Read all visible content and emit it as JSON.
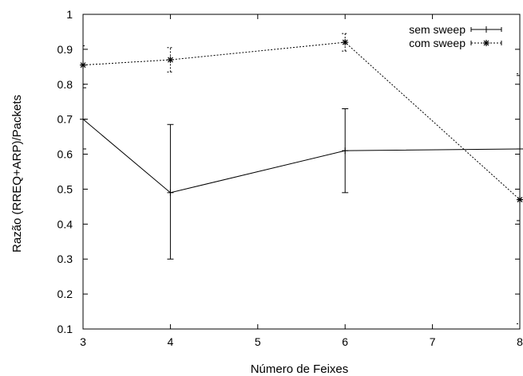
{
  "chart_data": {
    "type": "line",
    "xlabel": "Número de Feixes",
    "ylabel": "Razão (RREQ+ARP)/Packets",
    "xlim": [
      3,
      8
    ],
    "ylim": [
      0.1,
      1
    ],
    "x_ticks": [
      "3",
      "4",
      "5",
      "6",
      "7",
      "8"
    ],
    "y_ticks": [
      "0.1",
      "0.2",
      "0.3",
      "0.4",
      "0.5",
      "0.6",
      "0.7",
      "0.8",
      "0.9",
      "1"
    ],
    "grid": false,
    "legend_position": "top-right",
    "series": [
      {
        "name": "sem sweep",
        "line_style": "solid",
        "marker": "plus",
        "x": [
          3,
          4,
          6,
          8
        ],
        "y": [
          0.7,
          0.49,
          0.61,
          0.615
        ],
        "err_low": [
          0.615,
          0.3,
          0.49,
          0.41
        ],
        "err_high": [
          0.79,
          0.685,
          0.73,
          0.825
        ]
      },
      {
        "name": "com sweep",
        "line_style": "dotted",
        "marker": "star",
        "x": [
          3,
          4,
          6,
          8
        ],
        "y": [
          0.855,
          0.87,
          0.92,
          0.47
        ],
        "err_low": [
          0.8,
          0.835,
          0.895,
          0.115
        ],
        "err_high": [
          0.91,
          0.905,
          0.945,
          0.83
        ]
      }
    ]
  }
}
